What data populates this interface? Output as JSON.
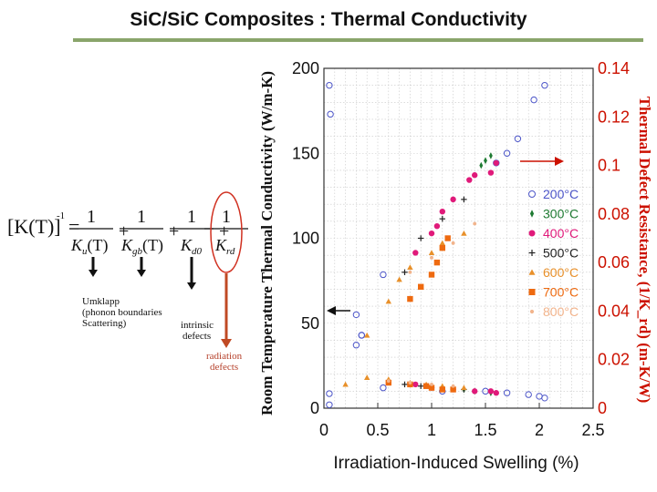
{
  "page_title": "SiC/SiC Composites : Thermal Conductivity",
  "equation": {
    "lhs": "[K(T)]",
    "exponent": "-1",
    "eq": "=",
    "plus": "+",
    "one": "1",
    "terms": [
      {
        "base": "K",
        "sub": "u",
        "arg": "(T)"
      },
      {
        "base": "K",
        "sub": "gb",
        "arg": "(T)"
      },
      {
        "base": "K",
        "sub": "d0",
        "arg": ""
      },
      {
        "base": "K",
        "sub": "rd",
        "arg": ""
      }
    ]
  },
  "annotations": {
    "umklapp": "Umklapp",
    "phonon_boundaries": "(phonon   boundaries",
    "scattering": "Scattering)",
    "intrinsic": "intrinsic",
    "intrinsic_defects": "defects",
    "radiation": "radiation",
    "radiation_defects": "defects"
  },
  "colors": {
    "accent_rule": "#8aa56b",
    "right_axis": "#cc1100",
    "oval": "#d03020",
    "arrow_down_red": "#c04a24"
  },
  "chart_data": {
    "type": "scatter",
    "xlabel": "Irradiation-Induced Swelling (%)",
    "ylabel": "Room Temperature Thermal Conductivity (W/m-K)",
    "y2label": "Thermal Defect Resistance, (1/K_rd) (m-K/W)",
    "xlim": [
      0,
      2.5
    ],
    "ylim": [
      0,
      200
    ],
    "y2lim": [
      0,
      0.14
    ],
    "xticks": [
      "0",
      "0.5",
      "1",
      "1.5",
      "2",
      "2.5"
    ],
    "yticks": [
      "0",
      "50",
      "100",
      "150",
      "200"
    ],
    "y2ticks": [
      "0",
      "0.02",
      "0.04",
      "0.06",
      "0.08",
      "0.1",
      "0.12",
      "0.14"
    ],
    "grid": true,
    "legend_position": "right",
    "series": [
      {
        "name": "200°C",
        "color": "#4c55c8",
        "marker": "open-circle",
        "conductivity": [
          [
            0.05,
            190
          ],
          [
            0.06,
            173
          ],
          [
            0.3,
            55
          ],
          [
            0.35,
            43
          ],
          [
            0.55,
            12
          ],
          [
            1.1,
            10
          ],
          [
            1.5,
            10
          ],
          [
            1.7,
            9
          ],
          [
            1.9,
            8
          ],
          [
            2.0,
            7
          ],
          [
            2.05,
            6
          ],
          [
            0.05,
            2
          ]
        ],
        "resistance": [
          [
            0.05,
            0.006
          ],
          [
            0.3,
            0.026
          ],
          [
            0.35,
            0.03
          ],
          [
            0.55,
            0.055
          ],
          [
            1.6,
            0.101
          ],
          [
            1.7,
            0.105
          ],
          [
            1.8,
            0.111
          ],
          [
            1.95,
            0.127
          ],
          [
            2.05,
            0.133
          ]
        ]
      },
      {
        "name": "300°C",
        "color": "#1e7a32",
        "marker": "diamond",
        "conductivity": [
          [
            1.3,
            11
          ],
          [
            1.4,
            10
          ],
          [
            1.55,
            9
          ]
        ],
        "resistance": [
          [
            1.46,
            0.1
          ],
          [
            1.5,
            0.102
          ],
          [
            1.55,
            0.104
          ]
        ]
      },
      {
        "name": "400°C",
        "color": "#e01a7a",
        "marker": "circle",
        "conductivity": [
          [
            0.85,
            14
          ],
          [
            1.0,
            12
          ],
          [
            1.2,
            11
          ],
          [
            1.4,
            10
          ],
          [
            1.55,
            10
          ],
          [
            1.6,
            9
          ]
        ],
        "resistance": [
          [
            0.85,
            0.064
          ],
          [
            1.0,
            0.072
          ],
          [
            1.05,
            0.075
          ],
          [
            1.1,
            0.081
          ],
          [
            1.2,
            0.086
          ],
          [
            1.35,
            0.094
          ],
          [
            1.4,
            0.096
          ],
          [
            1.55,
            0.097
          ],
          [
            1.6,
            0.101
          ]
        ]
      },
      {
        "name": "500°C",
        "color": "#222222",
        "marker": "plus",
        "conductivity": [
          [
            0.75,
            14
          ],
          [
            0.9,
            13
          ],
          [
            1.1,
            12
          ],
          [
            1.3,
            11
          ]
        ],
        "resistance": [
          [
            0.75,
            0.056
          ],
          [
            0.9,
            0.07
          ],
          [
            1.1,
            0.078
          ],
          [
            1.3,
            0.086
          ]
        ]
      },
      {
        "name": "600°C",
        "color": "#e8902a",
        "marker": "triangle",
        "conductivity": [
          [
            0.2,
            14
          ],
          [
            0.4,
            18
          ],
          [
            0.6,
            17
          ],
          [
            0.8,
            15
          ],
          [
            0.95,
            14
          ],
          [
            1.1,
            13
          ],
          [
            1.3,
            12
          ]
        ],
        "resistance": [
          [
            0.4,
            0.03
          ],
          [
            0.6,
            0.044
          ],
          [
            0.7,
            0.053
          ],
          [
            0.8,
            0.058
          ],
          [
            1.0,
            0.064
          ],
          [
            1.1,
            0.068
          ],
          [
            1.3,
            0.072
          ]
        ]
      },
      {
        "name": "700°C",
        "color": "#ee6a10",
        "marker": "square",
        "conductivity": [
          [
            0.6,
            15
          ],
          [
            0.8,
            14
          ],
          [
            0.95,
            13
          ],
          [
            1.0,
            12
          ],
          [
            1.1,
            11
          ],
          [
            1.2,
            11
          ]
        ],
        "resistance": [
          [
            0.8,
            0.045
          ],
          [
            0.9,
            0.05
          ],
          [
            1.0,
            0.055
          ],
          [
            1.05,
            0.06
          ],
          [
            1.1,
            0.066
          ],
          [
            1.15,
            0.07
          ]
        ]
      },
      {
        "name": "800°C",
        "color": "#f2b48c",
        "marker": "dot",
        "conductivity": [
          [
            0.6,
            16
          ],
          [
            0.8,
            15
          ],
          [
            1.0,
            14
          ],
          [
            1.2,
            13
          ]
        ],
        "resistance": [
          [
            0.8,
            0.056
          ],
          [
            1.0,
            0.062
          ],
          [
            1.2,
            0.068
          ],
          [
            1.4,
            0.076
          ]
        ]
      }
    ]
  }
}
